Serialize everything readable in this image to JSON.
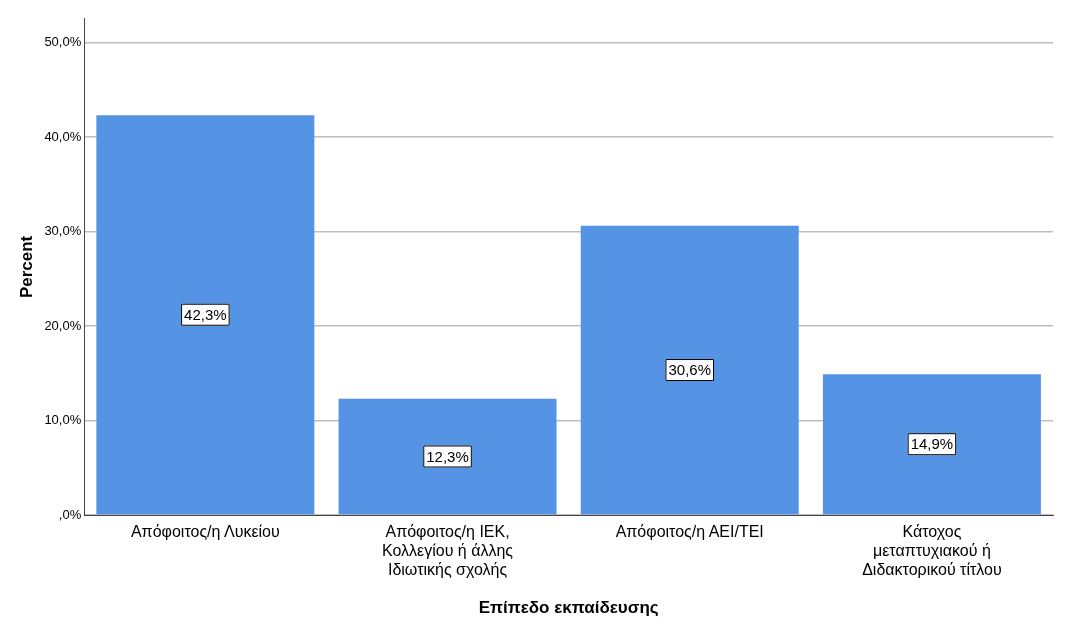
{
  "chart_data": {
    "type": "bar",
    "xlabel": "Επίπεδο εκπαίδευσης",
    "ylabel": "Percent",
    "categories": [
      "Απόφοιτος/η Λυκείου",
      "Απόφοιτος/η ΙΕΚ, Κολλεγίου ή άλλης Ιδιωτικής σχολής",
      "Απόφοιτος/η ΑΕΙ/ΤΕΙ",
      "Κάτοχος μεταπτυχιακού ή Διδακτορικού τίτλου"
    ],
    "values": [
      42.3,
      12.3,
      30.6,
      14.9
    ],
    "value_labels": [
      "42,3%",
      "12,3%",
      "30,6%",
      "14,9%"
    ],
    "color": "#5593e4",
    "ylim": [
      0,
      52.5
    ],
    "yticks": [
      {
        "value": 0,
        "label": ",0%"
      },
      {
        "value": 10,
        "label": "10,0%"
      },
      {
        "value": 20,
        "label": "20,0%"
      },
      {
        "value": 30,
        "label": "30,0%"
      },
      {
        "value": 40,
        "label": "40,0%"
      },
      {
        "value": 50,
        "label": "50,0%"
      }
    ],
    "grid": "y",
    "legend": false
  }
}
